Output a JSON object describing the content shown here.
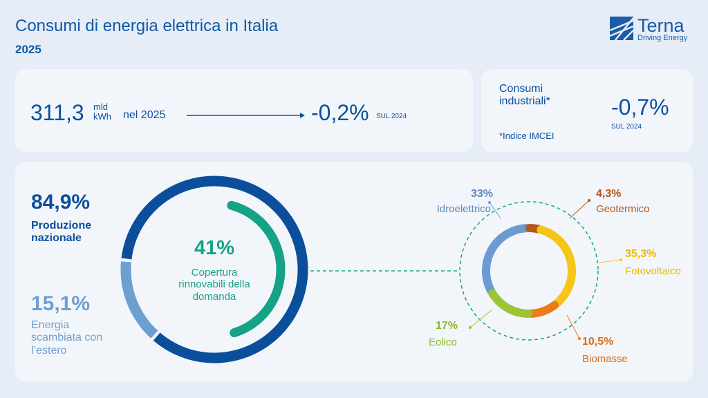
{
  "header": {
    "title": "Consumi di energia elettrica in Italia",
    "subtitle": "2025",
    "logo": {
      "name": "Terna",
      "tagline": "Driving Energy"
    }
  },
  "summary": {
    "value": "311,3",
    "unit_top": "mld",
    "unit_bottom": "kWh",
    "period": "nel 2025",
    "change": "-0,2%",
    "change_ref": "SUL 2024"
  },
  "industrial": {
    "title": "Consumi industriali*",
    "note": "*Indice IMCEI",
    "change": "-0,7%",
    "change_ref": "SUL 2024"
  },
  "chart_data": [
    {
      "type": "donut",
      "categories": [
        "Produzione nazionale",
        "Energia scambiata con l’estero"
      ],
      "values": [
        84.9,
        15.1
      ],
      "value_labels": [
        "84,9%",
        "15,1%"
      ],
      "colors": [
        "#0b4f9c",
        "#6e9fd1"
      ],
      "inner": {
        "value": 41,
        "label": "41%",
        "text": "Copertura rinnovabili della domanda",
        "color": "#14a385"
      }
    },
    {
      "type": "donut",
      "categories": [
        "Idroelettrico",
        "Geotermico",
        "Fotovoltaico",
        "Biomasse",
        "Eolico"
      ],
      "values": [
        33,
        4.3,
        35.3,
        10.5,
        17
      ],
      "value_labels": [
        "33%",
        "4,3%",
        "35,3%",
        "10,5%",
        "17%"
      ],
      "colors": [
        "#6c9bd2",
        "#b5561a",
        "#f5c518",
        "#ec7b1c",
        "#9cc437"
      ]
    }
  ]
}
